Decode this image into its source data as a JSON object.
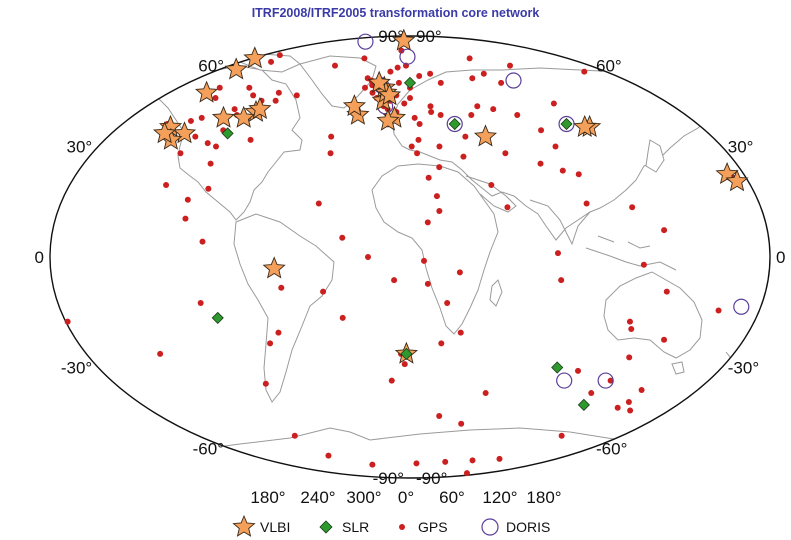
{
  "title": "ITRF2008/ITRF2005 transformation core network",
  "lat_labels": [
    "90°",
    "60°",
    "30°",
    "0",
    "-30°",
    "-60°",
    "-90°"
  ],
  "lon_labels": [
    "180°",
    "240°",
    "300°",
    "0°",
    "60°",
    "120°",
    "180°"
  ],
  "legend": [
    {
      "key": "vlbi",
      "label": "VLBI",
      "color": "#f4a05a"
    },
    {
      "key": "slr",
      "label": "SLR",
      "color": "#2e9a2e"
    },
    {
      "key": "gps",
      "label": "GPS",
      "color": "#cc1f1f"
    },
    {
      "key": "doris",
      "label": "DORIS",
      "color": "#5a3f9a"
    }
  ],
  "stations": {
    "vlbi": [
      [
        64,
        -147
      ],
      [
        58,
        -134
      ],
      [
        48,
        -122
      ],
      [
        41,
        -72
      ],
      [
        39,
        -77
      ],
      [
        39,
        -90
      ],
      [
        42,
        -71
      ],
      [
        36,
        -118
      ],
      [
        34,
        -106
      ],
      [
        32,
        -111
      ],
      [
        34,
        -118
      ],
      [
        22,
        -159
      ],
      [
        20,
        -156
      ],
      [
        -3,
        -38
      ],
      [
        78,
        15
      ],
      [
        50,
        10
      ],
      [
        45,
        11
      ],
      [
        48,
        12
      ],
      [
        47,
        15
      ],
      [
        52,
        5
      ],
      [
        40,
        -4
      ],
      [
        39,
        20
      ],
      [
        43,
        -8
      ],
      [
        38,
        16
      ],
      [
        33,
        75
      ],
      [
        36,
        141
      ],
      [
        36,
        138
      ],
      [
        -26,
        28
      ]
    ],
    "slr": [
      [
        34,
        -80
      ],
      [
        -16,
        -70
      ],
      [
        52,
        30
      ],
      [
        37,
        58
      ],
      [
        37,
        128
      ],
      [
        -30,
        115
      ],
      [
        -42,
        147
      ],
      [
        -26,
        28
      ]
    ],
    "gps": [
      [
        57,
        -170
      ],
      [
        63,
        -140
      ],
      [
        62,
        -118
      ],
      [
        50,
        -118
      ],
      [
        46,
        -110
      ],
      [
        47,
        -85
      ],
      [
        50,
        -95
      ],
      [
        40,
        -83
      ],
      [
        39,
        -104
      ],
      [
        33,
        -98
      ],
      [
        31,
        -88
      ],
      [
        28,
        -100
      ],
      [
        30,
        -82
      ],
      [
        25,
        -80
      ],
      [
        18,
        -76
      ],
      [
        19,
        -99
      ],
      [
        15,
        -85
      ],
      [
        10,
        -84
      ],
      [
        4,
        -74
      ],
      [
        -12,
        -77
      ],
      [
        -23,
        -46
      ],
      [
        -35,
        -58
      ],
      [
        -54,
        -68
      ],
      [
        -20,
        -40
      ],
      [
        -8,
        -35
      ],
      [
        33,
        -17
      ],
      [
        28,
        -15
      ],
      [
        14,
        -17
      ],
      [
        32,
        -64
      ],
      [
        47,
        -53
      ],
      [
        64,
        -22
      ],
      [
        60,
        -45
      ],
      [
        45,
        -65
      ],
      [
        69,
        18
      ],
      [
        60,
        26
      ],
      [
        59,
        18
      ],
      [
        57,
        12
      ],
      [
        54,
        -6
      ],
      [
        53,
        -2
      ],
      [
        51,
        0
      ],
      [
        50,
        -5
      ],
      [
        48,
        2
      ],
      [
        46,
        6
      ],
      [
        47,
        20
      ],
      [
        45,
        16
      ],
      [
        43,
        12
      ],
      [
        42,
        15
      ],
      [
        41,
        21
      ],
      [
        44,
        26
      ],
      [
        46,
        30
      ],
      [
        50,
        30
      ],
      [
        52,
        21
      ],
      [
        55,
        38
      ],
      [
        56,
        48
      ],
      [
        52,
        55
      ],
      [
        43,
        44
      ],
      [
        41,
        44
      ],
      [
        39,
        33
      ],
      [
        37,
        36
      ],
      [
        32,
        35
      ],
      [
        30,
        31
      ],
      [
        28,
        34
      ],
      [
        24,
        46
      ],
      [
        21,
        40
      ],
      [
        16,
        44
      ],
      [
        30,
        47
      ],
      [
        40,
        50
      ],
      [
        33,
        63
      ],
      [
        40,
        70
      ],
      [
        43,
        76
      ],
      [
        42,
        86
      ],
      [
        52,
        104
      ],
      [
        54,
        83
      ],
      [
        56,
        96
      ],
      [
        64,
        98
      ],
      [
        60,
        130
      ],
      [
        44,
        130
      ],
      [
        40,
        100
      ],
      [
        35,
        110
      ],
      [
        30,
        114
      ],
      [
        23,
        113
      ],
      [
        25,
        102
      ],
      [
        22,
        121
      ],
      [
        14,
        121
      ],
      [
        1,
        104
      ],
      [
        -6,
        106
      ],
      [
        13,
        80
      ],
      [
        19,
        73
      ],
      [
        28,
        84
      ],
      [
        27,
        60
      ],
      [
        12,
        45
      ],
      [
        9,
        39
      ],
      [
        -1,
        37
      ],
      [
        -7,
        39
      ],
      [
        -12,
        49
      ],
      [
        -20,
        57
      ],
      [
        0,
        9
      ],
      [
        5,
        -4
      ],
      [
        -6,
        22
      ],
      [
        -23,
        47
      ],
      [
        -34,
        19
      ],
      [
        -29,
        27
      ],
      [
        -26,
        25
      ],
      [
        -17,
        145
      ],
      [
        -38,
        145
      ],
      [
        -34,
        151
      ],
      [
        -31,
        128
      ],
      [
        -27,
        153
      ],
      [
        -19,
        147
      ],
      [
        -2,
        147
      ],
      [
        -9,
        160
      ],
      [
        -41,
        175
      ],
      [
        -37,
        175
      ],
      [
        -43,
        172
      ],
      [
        -4,
        55
      ],
      [
        -9,
        -14
      ],
      [
        -16,
        -5
      ],
      [
        -38,
        78
      ],
      [
        -49,
        69
      ],
      [
        -46,
        51
      ],
      [
        -64,
        -63
      ],
      [
        -70,
        -25
      ],
      [
        -69,
        39
      ],
      [
        -68,
        77
      ],
      [
        -67,
        110
      ],
      [
        -66,
        140
      ],
      [
        -78,
        167
      ],
      [
        -54,
        159
      ],
      [
        -44,
        -177
      ],
      [
        21,
        -157
      ],
      [
        -14,
        -171
      ],
      [
        7,
        158
      ],
      [
        13,
        144
      ],
      [
        -17,
        -149
      ],
      [
        -22,
        167
      ],
      [
        -26,
        -109
      ],
      [
        66,
        -130
      ],
      [
        48,
        -68
      ],
      [
        45,
        -75
      ],
      [
        42,
        -88
      ],
      [
        37,
        -122
      ],
      [
        38,
        -109
      ],
      [
        35,
        -84
      ]
    ],
    "doris": [
      [
        77,
        -69
      ],
      [
        65,
        27
      ],
      [
        51,
        7
      ],
      [
        43,
        13
      ],
      [
        37,
        58
      ],
      [
        53,
        116
      ],
      [
        37,
        128
      ],
      [
        -13,
        -160
      ],
      [
        -34,
        148
      ],
      [
        -34,
        123
      ]
    ]
  }
}
